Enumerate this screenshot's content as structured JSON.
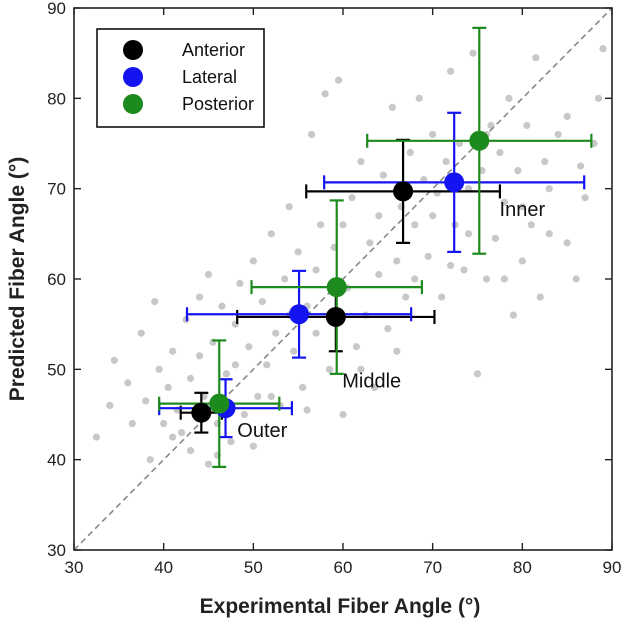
{
  "chart_data": {
    "type": "scatter",
    "title": "",
    "xlabel": "Experimental Fiber Angle (°)",
    "ylabel": "Predicted Fiber Angle (°)",
    "xlim": [
      30,
      90
    ],
    "ylim": [
      30,
      90
    ],
    "xticks": [
      "30",
      "40",
      "50",
      "60",
      "70",
      "80",
      "90"
    ],
    "yticks": [
      "30",
      "40",
      "50",
      "60",
      "70",
      "80",
      "90"
    ],
    "grid": false,
    "identity_line": true,
    "legend_position": "top-left",
    "colors": {
      "background": "#c8c8c8",
      "anterior": "#000000",
      "lateral": "#1414f0",
      "posterior": "#1c8a1c",
      "identity": "#888888"
    },
    "annotations": [
      {
        "text": "Inner",
        "x": 80,
        "y": 67
      },
      {
        "text": "Middle",
        "x": 63.2,
        "y": 48
      },
      {
        "text": "Outer",
        "x": 51,
        "y": 42.5
      }
    ],
    "background_points": [
      [
        32.5,
        42.5
      ],
      [
        34,
        46
      ],
      [
        34.5,
        51
      ],
      [
        36,
        48.5
      ],
      [
        37.5,
        54
      ],
      [
        38,
        46.5
      ],
      [
        39,
        57.5
      ],
      [
        39.5,
        50
      ],
      [
        40,
        44
      ],
      [
        40.5,
        48
      ],
      [
        41,
        52
      ],
      [
        41.5,
        45.5
      ],
      [
        42,
        43
      ],
      [
        42.5,
        55.5
      ],
      [
        43,
        49
      ],
      [
        43,
        41
      ],
      [
        44,
        51.5
      ],
      [
        44.5,
        47
      ],
      [
        45,
        60.5
      ],
      [
        45,
        39.5
      ],
      [
        45.5,
        53
      ],
      [
        46,
        44
      ],
      [
        46.5,
        57
      ],
      [
        47,
        49.5
      ],
      [
        47.5,
        42
      ],
      [
        48,
        55
      ],
      [
        48.5,
        59.5
      ],
      [
        49,
        45
      ],
      [
        49.5,
        52.5
      ],
      [
        50,
        62
      ],
      [
        50.5,
        47
      ],
      [
        51,
        57.5
      ],
      [
        51.5,
        50.5
      ],
      [
        52,
        65
      ],
      [
        52.5,
        54
      ],
      [
        53,
        46
      ],
      [
        53.5,
        60
      ],
      [
        54,
        68
      ],
      [
        54.5,
        52
      ],
      [
        55,
        63
      ],
      [
        55.5,
        48
      ],
      [
        56,
        57
      ],
      [
        56.5,
        76
      ],
      [
        57,
        54
      ],
      [
        57.5,
        66
      ],
      [
        58,
        80.5
      ],
      [
        58.5,
        50
      ],
      [
        59,
        63.5
      ],
      [
        59.5,
        82
      ],
      [
        60,
        45
      ],
      [
        60.5,
        59
      ],
      [
        61,
        69
      ],
      [
        61.5,
        52.5
      ],
      [
        62,
        73
      ],
      [
        62.5,
        56
      ],
      [
        63,
        64
      ],
      [
        63.5,
        48
      ],
      [
        64,
        60.5
      ],
      [
        64.5,
        71.5
      ],
      [
        65,
        54.5
      ],
      [
        65.5,
        79
      ],
      [
        66,
        62
      ],
      [
        66.5,
        68
      ],
      [
        67,
        58
      ],
      [
        67.5,
        74
      ],
      [
        68,
        66
      ],
      [
        68.5,
        80
      ],
      [
        69,
        71
      ],
      [
        69.5,
        62.5
      ],
      [
        70,
        76
      ],
      [
        70.5,
        69.5
      ],
      [
        71,
        58
      ],
      [
        71.5,
        73
      ],
      [
        72,
        83
      ],
      [
        72.5,
        66
      ],
      [
        73,
        75
      ],
      [
        73.5,
        61
      ],
      [
        74,
        70
      ],
      [
        74.5,
        85
      ],
      [
        75,
        49.5
      ],
      [
        75.5,
        72
      ],
      [
        76,
        60
      ],
      [
        76.5,
        77
      ],
      [
        77,
        64.5
      ],
      [
        77.5,
        74
      ],
      [
        78,
        68.5
      ],
      [
        78.5,
        80
      ],
      [
        79,
        56
      ],
      [
        79.5,
        72
      ],
      [
        80,
        62
      ],
      [
        80.5,
        77
      ],
      [
        81,
        66
      ],
      [
        81.5,
        84.5
      ],
      [
        82,
        58
      ],
      [
        82.5,
        73
      ],
      [
        83,
        70
      ],
      [
        84,
        76
      ],
      [
        85,
        64
      ],
      [
        86,
        60
      ],
      [
        86.5,
        72.5
      ],
      [
        87,
        69
      ],
      [
        88,
        75
      ],
      [
        88.5,
        80
      ],
      [
        89,
        85.5
      ],
      [
        36.5,
        44
      ],
      [
        38.5,
        40
      ],
      [
        41,
        42.5
      ],
      [
        44,
        58
      ],
      [
        46,
        40.5
      ],
      [
        48,
        50.5
      ],
      [
        50,
        41.5
      ],
      [
        52,
        47
      ],
      [
        54,
        56
      ],
      [
        56,
        45.5
      ],
      [
        57,
        61
      ],
      [
        60,
        66
      ],
      [
        62,
        50
      ],
      [
        64,
        67
      ],
      [
        66,
        52
      ],
      [
        68,
        60
      ],
      [
        70,
        67
      ],
      [
        72,
        61.5
      ],
      [
        74,
        65
      ],
      [
        76,
        76
      ],
      [
        78,
        60
      ],
      [
        80,
        68
      ],
      [
        83,
        65
      ],
      [
        85,
        78
      ]
    ],
    "series": [
      {
        "name": "Anterior",
        "color": "#000000",
        "points": [
          {
            "label": "Outer",
            "x": 44.2,
            "y": 45.2,
            "xerr": 2.3,
            "yerr": 2.2
          },
          {
            "label": "Middle",
            "x": 59.2,
            "y": 55.8,
            "xerr": 11,
            "yerr": 3.8
          },
          {
            "label": "Inner",
            "x": 66.7,
            "y": 69.7,
            "xerr": 10.8,
            "yerr": 5.7
          }
        ]
      },
      {
        "name": "Lateral",
        "color": "#1414f0",
        "points": [
          {
            "label": "Outer",
            "x": 46.9,
            "y": 45.7,
            "xerr": 7.4,
            "yerr": 3.2
          },
          {
            "label": "Middle",
            "x": 55.1,
            "y": 56.1,
            "xerr": 12.5,
            "yerr": 4.8
          },
          {
            "label": "Inner",
            "x": 72.4,
            "y": 70.7,
            "xerr": 14.5,
            "yerr": 7.7
          }
        ]
      },
      {
        "name": "Posterior",
        "color": "#1c8a1c",
        "points": [
          {
            "label": "Outer",
            "x": 46.2,
            "y": 46.2,
            "xerr": 6.7,
            "yerr": 7.0
          },
          {
            "label": "Middle",
            "x": 59.3,
            "y": 59.1,
            "xerr": 9.5,
            "yerr": 9.6
          },
          {
            "label": "Inner",
            "x": 75.2,
            "y": 75.3,
            "xerr": 12.5,
            "yerr": 12.5
          }
        ]
      }
    ]
  }
}
